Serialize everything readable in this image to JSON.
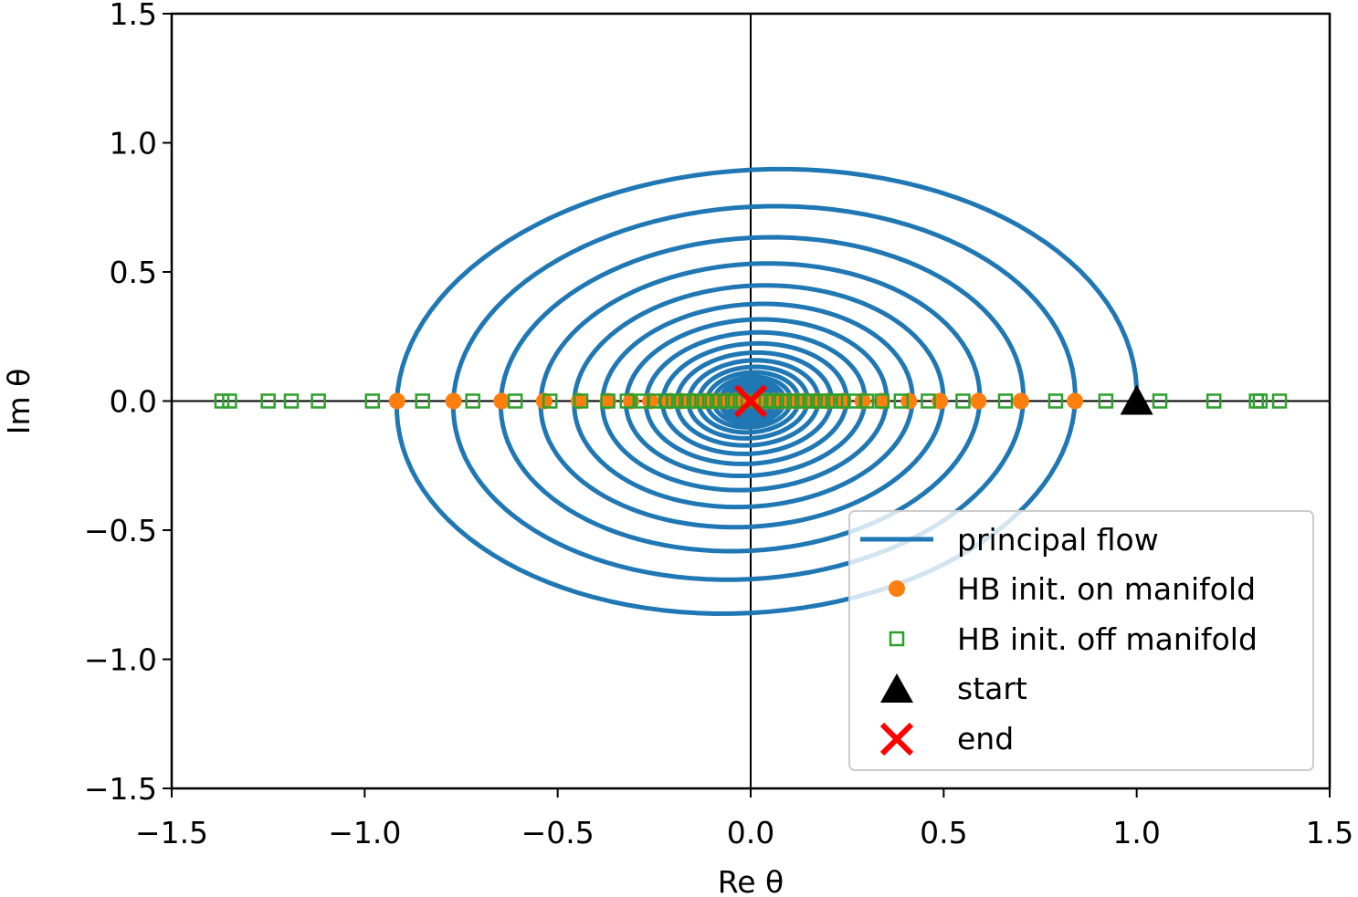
{
  "chart_data": {
    "type": "line",
    "title": "",
    "xlabel": "Re θ",
    "ylabel": "Im θ",
    "xlim": [
      -1.5,
      1.5
    ],
    "ylim": [
      -1.5,
      1.5
    ],
    "grid": false,
    "legend_position": "lower-right",
    "x_ticks": [
      -1.5,
      -1.0,
      -0.5,
      0.0,
      0.5,
      1.0,
      1.5
    ],
    "x_tick_labels": [
      "−1.5",
      "−1.0",
      "−0.5",
      "0.0",
      "0.5",
      "1.0",
      "1.5"
    ],
    "y_ticks": [
      -1.5,
      -1.0,
      -0.5,
      0.0,
      0.5,
      1.0,
      1.5
    ],
    "y_tick_labels": [
      "−1.5",
      "−1.0",
      "−0.5",
      "0.0",
      "0.5",
      "1.0",
      "1.5"
    ],
    "reference_lines": {
      "x": 0,
      "y": 0,
      "color": "#000000"
    },
    "series": [
      {
        "name": "principal flow",
        "kind": "line",
        "color": "#1f77b4",
        "spiral": {
          "start": [
            1.0,
            0.05
          ],
          "end": [
            0.0,
            0.0
          ],
          "decay_per_half_turn": 0.9167,
          "aspect_y_over_x": 0.935,
          "half_turns": 60
        }
      },
      {
        "name": "HB init. on manifold",
        "kind": "marker",
        "marker": "circle",
        "color": "#ff7f0e",
        "x": [
          0.84,
          0.7,
          0.59,
          0.49,
          0.41,
          0.34,
          0.29,
          0.24,
          0.2,
          0.17,
          -0.916,
          -0.77,
          -0.645,
          -0.535,
          -0.445,
          -0.37,
          -0.31,
          -0.26,
          -0.21,
          -0.18,
          -0.15,
          -0.12,
          -0.1,
          -0.08,
          -0.06,
          -0.04,
          -0.02,
          0.02,
          0.04,
          0.06,
          0.08,
          0.1,
          0.12,
          0.14
        ],
        "y": [
          0,
          0,
          0,
          0,
          0,
          0,
          0,
          0,
          0,
          0,
          0,
          0,
          0,
          0,
          0,
          0,
          0,
          0,
          0,
          0,
          0,
          0,
          0,
          0,
          0,
          0,
          0,
          0,
          0,
          0,
          0,
          0,
          0,
          0
        ]
      },
      {
        "name": "HB init. off manifold",
        "kind": "marker",
        "marker": "square-open",
        "color": "#2ca02c",
        "x": [
          -1.37,
          -1.35,
          -1.25,
          -1.19,
          -1.12,
          -0.98,
          -0.85,
          -0.72,
          -0.61,
          -0.52,
          -0.44,
          -0.37,
          -0.32,
          -0.28,
          -0.25,
          -0.22,
          -0.2,
          -0.18,
          -0.16,
          -0.14,
          -0.12,
          -0.1,
          -0.08,
          -0.06,
          -0.04,
          -0.02,
          0.02,
          0.04,
          0.06,
          0.08,
          0.1,
          0.12,
          0.14,
          0.16,
          0.18,
          0.2,
          0.22,
          0.24,
          0.27,
          0.3,
          0.34,
          0.39,
          0.46,
          0.55,
          0.66,
          0.79,
          0.92,
          1.06,
          1.2,
          1.31,
          1.32,
          1.37
        ],
        "y": [
          0,
          0,
          0,
          0,
          0,
          0,
          0,
          0,
          0,
          0,
          0,
          0,
          0,
          0,
          0,
          0,
          0,
          0,
          0,
          0,
          0,
          0,
          0,
          0,
          0,
          0,
          0,
          0,
          0,
          0,
          0,
          0,
          0,
          0,
          0,
          0,
          0,
          0,
          0,
          0,
          0,
          0,
          0,
          0,
          0,
          0,
          0,
          0,
          0,
          0,
          0,
          0
        ]
      },
      {
        "name": "start",
        "kind": "marker",
        "marker": "triangle",
        "color": "#000000",
        "x": [
          1.0
        ],
        "y": [
          0.0
        ]
      },
      {
        "name": "end",
        "kind": "marker",
        "marker": "x",
        "color": "#ff0000",
        "x": [
          0.0
        ],
        "y": [
          0.0
        ]
      }
    ]
  }
}
